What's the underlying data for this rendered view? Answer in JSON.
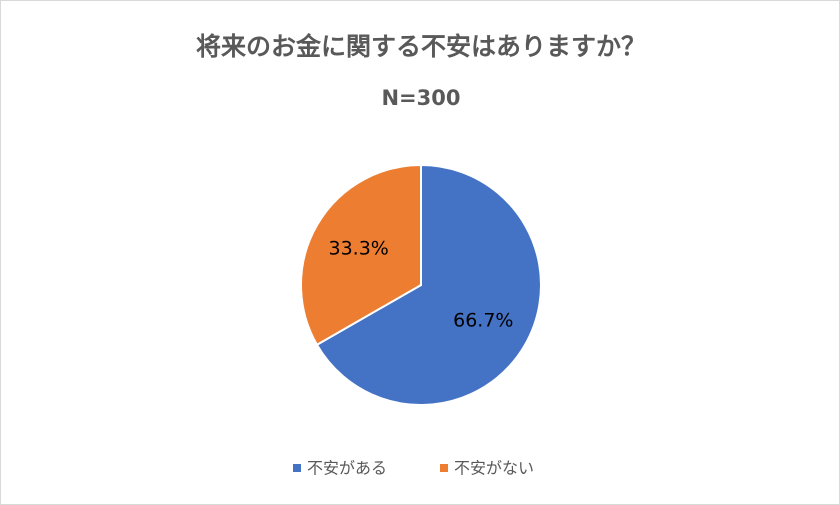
{
  "chart_data": {
    "type": "pie",
    "title": "将来のお金に関する不安はありますか？",
    "subtitle": "N=300",
    "categories": [
      "不安がある",
      "不安がない"
    ],
    "values": [
      66.7,
      33.3
    ],
    "value_labels": [
      "66.7%",
      "33.3%"
    ],
    "colors": [
      "#4472c4",
      "#ed7d31"
    ]
  }
}
